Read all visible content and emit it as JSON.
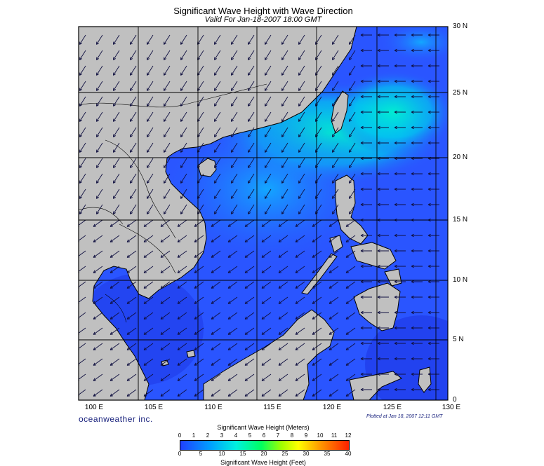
{
  "header": {
    "title": "Significant Wave Height with Wave Direction",
    "subtitle": "Valid For Jan-18-2007 18:00 GMT"
  },
  "map": {
    "lat_labels": [
      "30 N",
      "25 N",
      "20 N",
      "15 N",
      "10 N",
      "5 N",
      "0"
    ],
    "lon_labels": [
      "100 E",
      "105 E",
      "110 E",
      "115 E",
      "120 E",
      "125 E",
      "130 E"
    ],
    "land_color": "#c0c0c0",
    "water_color": "#2a55ff",
    "high_wave_color": "#00e8e0",
    "arrow_color": "#101040"
  },
  "footer": {
    "brand": "oceanweather inc.",
    "plotted": "Plotted at Jan 18, 2007 12:11 GMT"
  },
  "colorbar": {
    "meters_title": "Significant Wave Height (Meters)",
    "meters_ticks": [
      "0",
      "1",
      "2",
      "3",
      "4",
      "5",
      "6",
      "7",
      "8",
      "9",
      "10",
      "11",
      "12"
    ],
    "feet_title": "Significant Wave Height (Feet)",
    "feet_ticks": [
      "0",
      "5",
      "10",
      "15",
      "20",
      "25",
      "30",
      "35",
      "40"
    ]
  }
}
